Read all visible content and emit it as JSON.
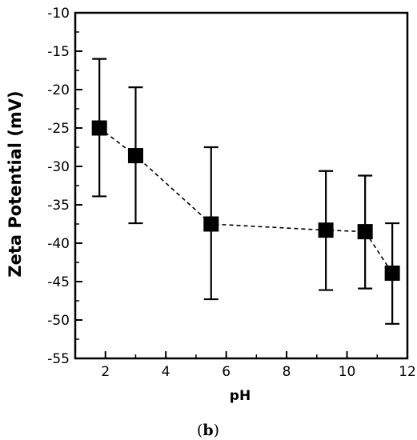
{
  "chart_data": {
    "type": "scatter",
    "xlabel": "pH",
    "ylabel": "Zeta Potential (mV)",
    "xlim": [
      1,
      12
    ],
    "ylim": [
      -55,
      -10
    ],
    "xticks": [
      2,
      4,
      6,
      8,
      10,
      12
    ],
    "yticks": [
      -10,
      -15,
      -20,
      -25,
      -30,
      -35,
      -40,
      -45,
      -50,
      -55
    ],
    "grid": false,
    "legend": "none",
    "line_style": "dashed",
    "marker": "square",
    "series": [
      {
        "x": [
          1.8,
          3.0,
          5.5,
          9.3,
          10.6,
          11.5
        ],
        "y": [
          -25.0,
          -28.6,
          -37.5,
          -38.3,
          -38.5,
          -43.9
        ],
        "error_low": [
          -33.9,
          -37.4,
          -47.3,
          -46.1,
          -45.9,
          -50.5
        ],
        "error_high": [
          -16.0,
          -19.7,
          -27.5,
          -30.6,
          -31.2,
          -37.4
        ]
      }
    ],
    "caption_open": "(",
    "caption_letter": "b",
    "caption_close": ")"
  }
}
